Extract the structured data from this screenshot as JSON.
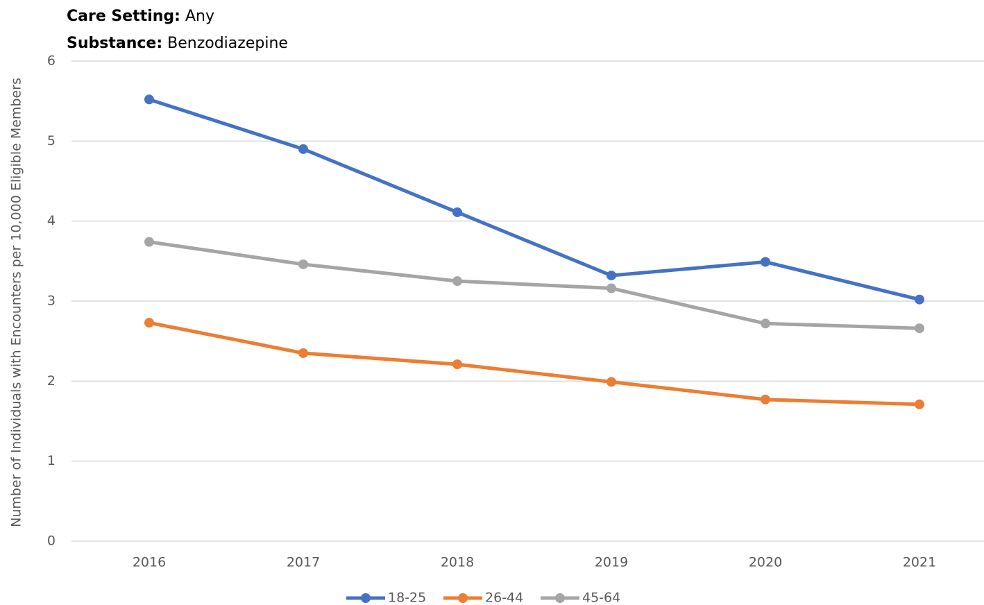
{
  "chart_data": {
    "type": "line",
    "filters": [
      {
        "label": "Care Setting:",
        "value": "Any"
      },
      {
        "label": "Substance:",
        "value": "Benzodiazepine"
      }
    ],
    "y_label": "Number of Individuals with Encounters per 10,000 Eligible Members",
    "categories": [
      "2016",
      "2017",
      "2018",
      "2019",
      "2020",
      "2021"
    ],
    "series": [
      {
        "name": "18-25",
        "color": "#4472c4",
        "values": [
          5.52,
          4.9,
          4.11,
          3.32,
          3.49,
          3.02
        ]
      },
      {
        "name": "26-44",
        "color": "#ed7d31",
        "values": [
          2.73,
          2.35,
          2.21,
          1.99,
          1.77,
          1.71
        ]
      },
      {
        "name": "45-64",
        "color": "#a5a5a5",
        "values": [
          3.74,
          3.46,
          3.25,
          3.16,
          2.72,
          2.66
        ]
      }
    ],
    "ylim": [
      0,
      6
    ],
    "yticks": [
      0,
      1,
      2,
      3,
      4,
      5,
      6
    ],
    "grid": true,
    "legend": "bottom"
  }
}
